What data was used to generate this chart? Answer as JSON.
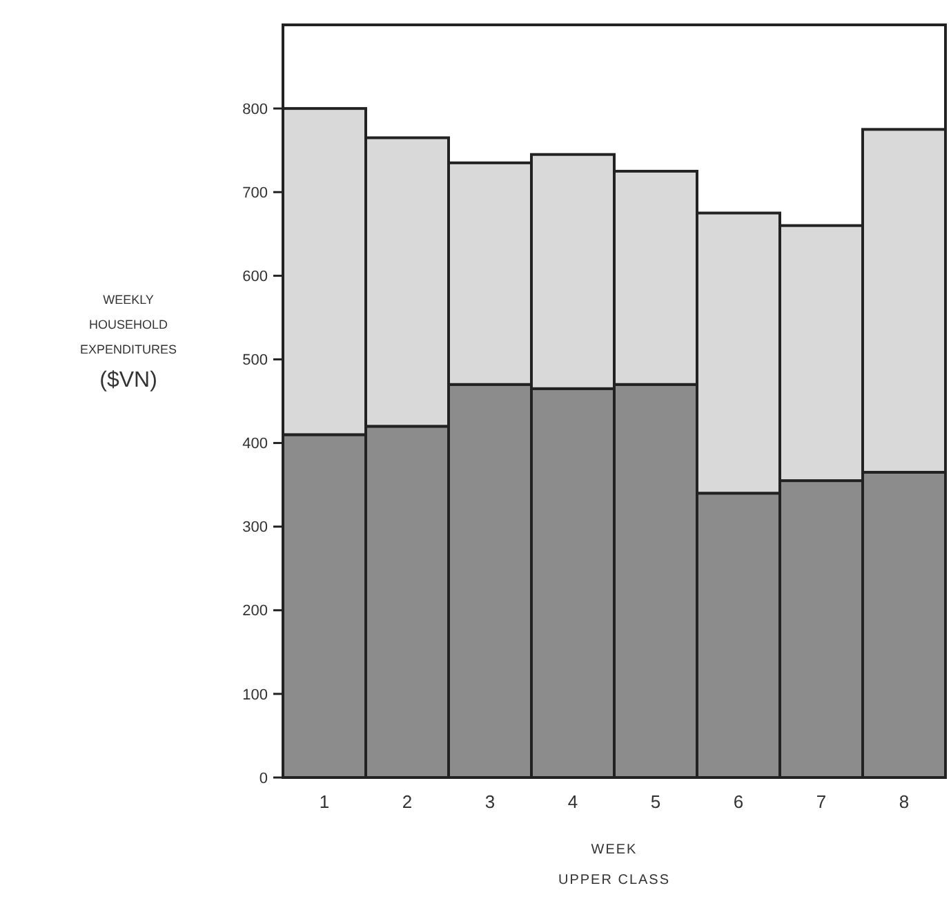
{
  "chart_data": {
    "type": "bar",
    "stacked": true,
    "categories": [
      "1",
      "2",
      "3",
      "4",
      "5",
      "6",
      "7",
      "8"
    ],
    "series": [
      {
        "color": "#8c8c8c",
        "values": [
          410,
          420,
          470,
          465,
          470,
          340,
          355,
          365
        ]
      },
      {
        "color": "#d9d9d9",
        "values": [
          390,
          345,
          265,
          280,
          255,
          335,
          305,
          410
        ]
      }
    ],
    "ylim": [
      0,
      900
    ],
    "yticks": [
      0,
      100,
      200,
      300,
      400,
      500,
      600,
      700,
      800
    ],
    "xlabel": "WEEK",
    "ylabel": "WEEKLY HOUSEHOLD EXPENDITURES ($VN)",
    "annotations": [
      "UPPER CLASS"
    ],
    "grid": false
  }
}
